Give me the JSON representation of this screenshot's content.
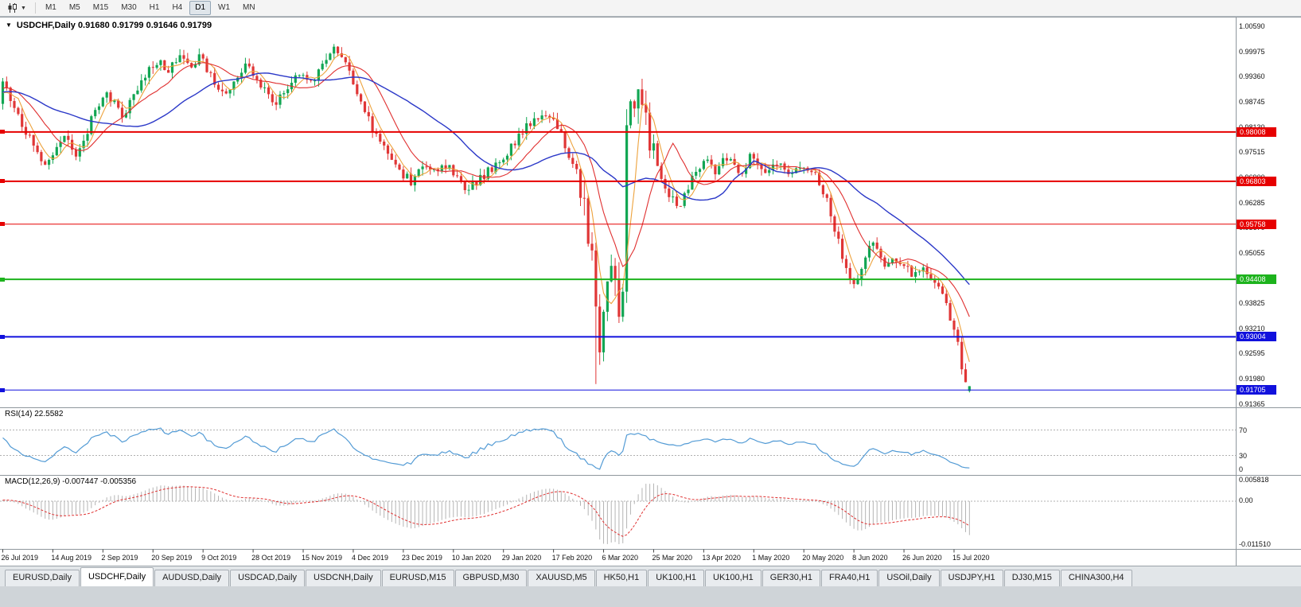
{
  "toolbar": {
    "timeframes": [
      "M1",
      "M5",
      "M15",
      "M30",
      "H1",
      "H4",
      "D1",
      "W1",
      "MN"
    ],
    "active": "D1"
  },
  "chart": {
    "menu_arrow": "▼",
    "title": "USDCHF,Daily 0.91680 0.91799 0.91646 0.91799",
    "symbol": "USDCHF",
    "period": "Daily",
    "ohlc": {
      "open": "0.91680",
      "high": "0.91799",
      "low": "0.91646",
      "close": "0.91799"
    }
  },
  "price_axis": {
    "labels": [
      "1.00590",
      "0.99975",
      "0.99360",
      "0.98745",
      "0.98130",
      "0.97515",
      "0.96900",
      "0.96285",
      "0.95670",
      "0.95055",
      "0.94440",
      "0.93825",
      "0.93210",
      "0.92595",
      "0.91980",
      "0.91365"
    ]
  },
  "hlines": [
    {
      "value": "0.98008",
      "price": 0.98008,
      "color": "#e60000",
      "width": 2
    },
    {
      "value": "0.96803",
      "price": 0.96803,
      "color": "#e60000",
      "width": 2
    },
    {
      "value": "0.95758",
      "price": 0.95758,
      "color": "#e60000",
      "width": 1
    },
    {
      "value": "0.94408",
      "price": 0.94408,
      "color": "#1db31d",
      "width": 2
    },
    {
      "value": "0.93004",
      "price": 0.93004,
      "color": "#1111dd",
      "width": 2
    },
    {
      "value": "0.91705",
      "price": 0.91705,
      "color": "#1111dd",
      "width": 1
    }
  ],
  "rsi": {
    "label": "RSI(14) 22.5582",
    "value": 22.5582,
    "levels": [
      "70",
      "30",
      "0"
    ]
  },
  "macd": {
    "label": "MACD(12,26,9) -0.007447 -0.005356",
    "values": [
      "-0.007447",
      "-0.005356"
    ],
    "scale_labels": [
      "0.005818",
      "0.00",
      "-0.011510"
    ]
  },
  "dates": [
    "26 Jul 2019",
    "14 Aug 2019",
    "2 Sep 2019",
    "20 Sep 2019",
    "9 Oct 2019",
    "28 Oct 2019",
    "15 Nov 2019",
    "4 Dec 2019",
    "23 Dec 2019",
    "10 Jan 2020",
    "29 Jan 2020",
    "17 Feb 2020",
    "6 Mar 2020",
    "25 Mar 2020",
    "13 Apr 2020",
    "1 May 2020",
    "20 May 2020",
    "8 Jun 2020",
    "26 Jun 2020",
    "15 Jul 2020"
  ],
  "tabs": {
    "labels": [
      "EURUSD,Daily",
      "USDCHF,Daily",
      "AUDUSD,Daily",
      "USDCAD,Daily",
      "USDCNH,Daily",
      "EURUSD,M15",
      "GBPUSD,M30",
      "XAUUSD,M5",
      "HK50,H1",
      "UK100,H1",
      "UK100,H1",
      "GER30,H1",
      "FRA40,H1",
      "USOil,Daily",
      "USDJPY,H1",
      "DJ30,M15",
      "CHINA300,H4"
    ],
    "active_index": 1
  },
  "colors": {
    "bull": "#12a653",
    "bear": "#e03636",
    "ma_fast": "#eda23c",
    "ma_mid": "#e03030",
    "ma_slow": "#2b38c8",
    "rsi_line": "#539bd5",
    "macd_hist": "#b4b4b4",
    "macd_signal": "#e03030"
  },
  "chart_data": {
    "type": "candlestick",
    "title": "USDCHF,Daily",
    "symbol": "USDCHF",
    "timeframe": "D1",
    "x_range": [
      "26 Jul 2019",
      "24 Jul 2020"
    ],
    "y_axis": {
      "top": 1.0059,
      "step": 0.00615,
      "bottom": 0.91365
    },
    "num_candles": 252,
    "last_candle": {
      "open": 0.9168,
      "high": 0.91799,
      "low": 0.91646,
      "close": 0.91799
    },
    "overlays": [
      {
        "name": "MA",
        "period": 5,
        "color_key": "ma_fast"
      },
      {
        "name": "MA",
        "period": 13,
        "color_key": "ma_mid"
      },
      {
        "name": "MA",
        "period": 34,
        "color_key": "ma_slow"
      }
    ],
    "indicators": [
      {
        "name": "RSI",
        "params": [
          14
        ],
        "current": 22.5582,
        "levels": [
          70,
          30
        ]
      },
      {
        "name": "MACD",
        "params": [
          12,
          26,
          9
        ],
        "current": [
          -0.007447,
          -0.005356
        ],
        "scale": [
          0.005818,
          0,
          -0.01151
        ]
      }
    ],
    "horizontal_levels": [
      0.98008,
      0.96803,
      0.95758,
      0.94408,
      0.93004,
      0.91705
    ],
    "approximate": true,
    "price_path_anchors": [
      [
        0.0,
        0.9915
      ],
      [
        0.008,
        0.988
      ],
      [
        0.02,
        0.9815
      ],
      [
        0.032,
        0.9765
      ],
      [
        0.045,
        0.972
      ],
      [
        0.055,
        0.976
      ],
      [
        0.065,
        0.9785
      ],
      [
        0.075,
        0.973
      ],
      [
        0.085,
        0.9775
      ],
      [
        0.095,
        0.9855
      ],
      [
        0.105,
        0.9895
      ],
      [
        0.115,
        0.987
      ],
      [
        0.125,
        0.984
      ],
      [
        0.135,
        0.9895
      ],
      [
        0.148,
        0.9945
      ],
      [
        0.16,
        0.9975
      ],
      [
        0.172,
        0.9945
      ],
      [
        0.182,
        0.9995
      ],
      [
        0.192,
        0.996
      ],
      [
        0.205,
        0.999
      ],
      [
        0.215,
        0.9935
      ],
      [
        0.228,
        0.989
      ],
      [
        0.242,
        0.994
      ],
      [
        0.255,
        0.9965
      ],
      [
        0.268,
        0.9905
      ],
      [
        0.282,
        0.987
      ],
      [
        0.295,
        0.991
      ],
      [
        0.308,
        0.995
      ],
      [
        0.32,
        0.992
      ],
      [
        0.332,
        0.998
      ],
      [
        0.342,
        1.0
      ],
      [
        0.352,
        0.9975
      ],
      [
        0.362,
        0.992
      ],
      [
        0.372,
        0.986
      ],
      [
        0.385,
        0.98
      ],
      [
        0.398,
        0.9745
      ],
      [
        0.41,
        0.9705
      ],
      [
        0.422,
        0.968
      ],
      [
        0.435,
        0.9715
      ],
      [
        0.448,
        0.97
      ],
      [
        0.46,
        0.972
      ],
      [
        0.472,
        0.968
      ],
      [
        0.482,
        0.966
      ],
      [
        0.495,
        0.969
      ],
      [
        0.508,
        0.9715
      ],
      [
        0.52,
        0.974
      ],
      [
        0.532,
        0.9785
      ],
      [
        0.545,
        0.982
      ],
      [
        0.558,
        0.9845
      ],
      [
        0.568,
        0.983
      ],
      [
        0.578,
        0.979
      ],
      [
        0.59,
        0.972
      ],
      [
        0.6,
        0.966
      ],
      [
        0.609,
        0.95
      ],
      [
        0.612,
        0.945
      ],
      [
        0.618,
        0.928
      ],
      [
        0.623,
        0.938
      ],
      [
        0.628,
        0.952
      ],
      [
        0.633,
        0.944
      ],
      [
        0.638,
        0.936
      ],
      [
        0.642,
        0.94
      ],
      [
        0.6455,
        0.986
      ],
      [
        0.652,
        0.99
      ],
      [
        0.662,
        0.9855
      ],
      [
        0.675,
        0.974
      ],
      [
        0.688,
        0.965
      ],
      [
        0.7,
        0.962
      ],
      [
        0.712,
        0.968
      ],
      [
        0.725,
        0.973
      ],
      [
        0.738,
        0.9705
      ],
      [
        0.75,
        0.9745
      ],
      [
        0.762,
        0.97
      ],
      [
        0.775,
        0.9745
      ],
      [
        0.788,
        0.9705
      ],
      [
        0.8,
        0.973
      ],
      [
        0.812,
        0.9695
      ],
      [
        0.825,
        0.972
      ],
      [
        0.838,
        0.97
      ],
      [
        0.85,
        0.9655
      ],
      [
        0.862,
        0.955
      ],
      [
        0.872,
        0.947
      ],
      [
        0.882,
        0.943
      ],
      [
        0.892,
        0.95
      ],
      [
        0.902,
        0.9525
      ],
      [
        0.912,
        0.947
      ],
      [
        0.922,
        0.95
      ],
      [
        0.932,
        0.9475
      ],
      [
        0.942,
        0.945
      ],
      [
        0.952,
        0.946
      ],
      [
        0.962,
        0.943
      ],
      [
        0.972,
        0.941
      ],
      [
        0.98,
        0.935
      ],
      [
        0.988,
        0.928
      ],
      [
        0.994,
        0.921
      ],
      [
        1.0,
        0.91799
      ]
    ]
  }
}
